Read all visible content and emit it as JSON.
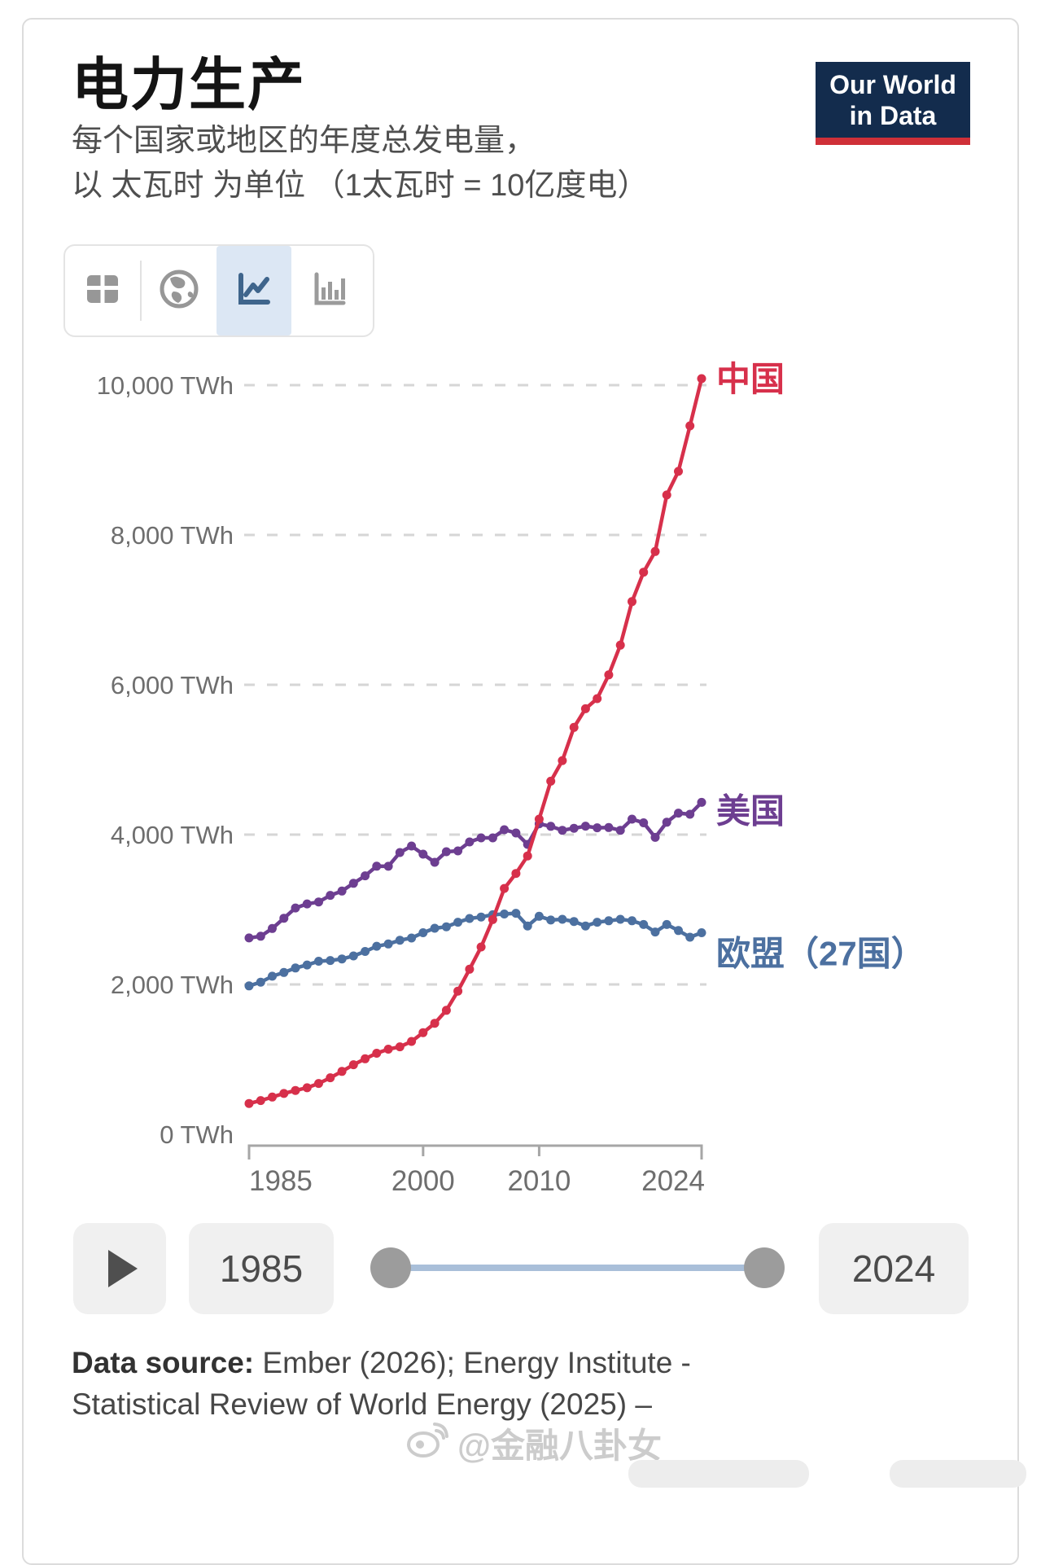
{
  "header": {
    "title": "电力生产",
    "subtitle_line1": "每个国家或地区的年度总发电量，",
    "subtitle_line2": "以 太瓦时 为单位 （1太瓦时 = 10亿度电）",
    "logo": {
      "line1": "Our World",
      "line2": "in Data",
      "bg_color": "#132C4D",
      "bar_color": "#CF3038"
    }
  },
  "toolbar": {
    "icons": [
      "table-icon",
      "globe-icon",
      "line-chart-icon",
      "bar-chart-icon"
    ],
    "selected": "line-chart-icon",
    "selected_bg": "#DCE7F4"
  },
  "chart_data": {
    "type": "line",
    "title": "电力生产",
    "unit": "TWh",
    "grid": "dashed-horizontal",
    "legend_position": "end-of-line-labels",
    "x_range": [
      1985,
      2024
    ],
    "ylim": [
      0,
      10000
    ],
    "y_ticks": [
      {
        "value": 0,
        "label": "0 TWh"
      },
      {
        "value": 2000,
        "label": "2,000 TWh"
      },
      {
        "value": 4000,
        "label": "4,000 TWh"
      },
      {
        "value": 6000,
        "label": "6,000 TWh"
      },
      {
        "value": 8000,
        "label": "8,000 TWh"
      },
      {
        "value": 10000,
        "label": "10,000 TWh"
      }
    ],
    "x_ticks": [
      {
        "value": 1985,
        "label": "1985",
        "align": "start"
      },
      {
        "value": 2000,
        "label": "2000",
        "align": "middle"
      },
      {
        "value": 2010,
        "label": "2010",
        "align": "middle"
      },
      {
        "value": 2024,
        "label": "2024",
        "align": "end"
      }
    ],
    "series": [
      {
        "id": "china",
        "name": "中国",
        "color": "#D7304B",
        "label_dy": 15,
        "values": [
          411,
          450,
          497,
          545,
          585,
          621,
          678,
          754,
          839,
          928,
          1008,
          1081,
          1136,
          1167,
          1239,
          1356,
          1481,
          1654,
          1911,
          2203,
          2500,
          2866,
          3282,
          3482,
          3715,
          4207,
          4713,
          4988,
          5432,
          5680,
          5815,
          6133,
          6529,
          7111,
          7503,
          7779,
          8534,
          8849,
          9456,
          10087
        ]
      },
      {
        "id": "usa",
        "name": "美国",
        "color": "#6D3E91",
        "label_dy": 25,
        "values": [
          2621,
          2643,
          2747,
          2884,
          3021,
          3075,
          3101,
          3189,
          3247,
          3350,
          3450,
          3578,
          3577,
          3761,
          3848,
          3739,
          3630,
          3772,
          3783,
          3902,
          3957,
          3957,
          4065,
          4022,
          3870,
          4143,
          4111,
          4058,
          4085,
          4113,
          4091,
          4095,
          4058,
          4207,
          4158,
          3963,
          4165,
          4287,
          4272,
          4430
        ]
      },
      {
        "id": "eu-27",
        "name": "欧盟（27国）",
        "color": "#4C70A0",
        "label_dy": 40,
        "values": [
          1980,
          2030,
          2110,
          2160,
          2220,
          2260,
          2310,
          2320,
          2340,
          2380,
          2440,
          2510,
          2540,
          2590,
          2620,
          2690,
          2750,
          2770,
          2830,
          2880,
          2900,
          2930,
          2940,
          2950,
          2780,
          2910,
          2860,
          2870,
          2840,
          2780,
          2830,
          2850,
          2870,
          2850,
          2800,
          2700,
          2800,
          2720,
          2630,
          2690
        ]
      }
    ]
  },
  "timeline": {
    "play_icon": "play-icon",
    "start_year": "1985",
    "end_year": "2024"
  },
  "footer": {
    "source_label": "Data source:",
    "source_line1_rest": " Ember (2026); Energy Institute -",
    "source_line2": "Statistical Review of World Energy (2025) –"
  },
  "watermark": {
    "icon": "weibo-icon",
    "text": "@金融八卦女"
  }
}
